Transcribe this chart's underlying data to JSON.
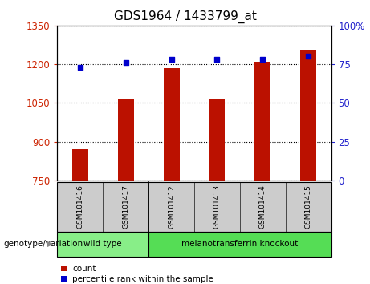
{
  "title": "GDS1964 / 1433799_at",
  "categories": [
    "GSM101416",
    "GSM101417",
    "GSM101412",
    "GSM101413",
    "GSM101414",
    "GSM101415"
  ],
  "bar_values": [
    870,
    1065,
    1185,
    1065,
    1210,
    1255
  ],
  "percentile_values": [
    73,
    76,
    78,
    78,
    78,
    80
  ],
  "bar_color": "#bb1100",
  "percentile_color": "#0000cc",
  "ylim_left": [
    750,
    1350
  ],
  "ylim_right": [
    0,
    100
  ],
  "yticks_left": [
    750,
    900,
    1050,
    1200,
    1350
  ],
  "yticks_right": [
    0,
    25,
    50,
    75,
    100
  ],
  "ytick_labels_right": [
    "0",
    "25",
    "50",
    "75",
    "100%"
  ],
  "groups": [
    {
      "label": "wild type",
      "span": [
        0,
        2
      ],
      "color": "#88ee88"
    },
    {
      "label": "melanotransferrin knockout",
      "span": [
        2,
        6
      ],
      "color": "#55dd55"
    }
  ],
  "group_header": "genotype/variation",
  "legend_items": [
    {
      "label": "count",
      "color": "#bb1100"
    },
    {
      "label": "percentile rank within the sample",
      "color": "#0000cc"
    }
  ],
  "bg_color": "#ffffff",
  "plot_bg_color": "#ffffff",
  "tick_color_left": "#cc2200",
  "tick_color_right": "#2222cc",
  "sample_box_color": "#cccccc",
  "title_fontsize": 11
}
